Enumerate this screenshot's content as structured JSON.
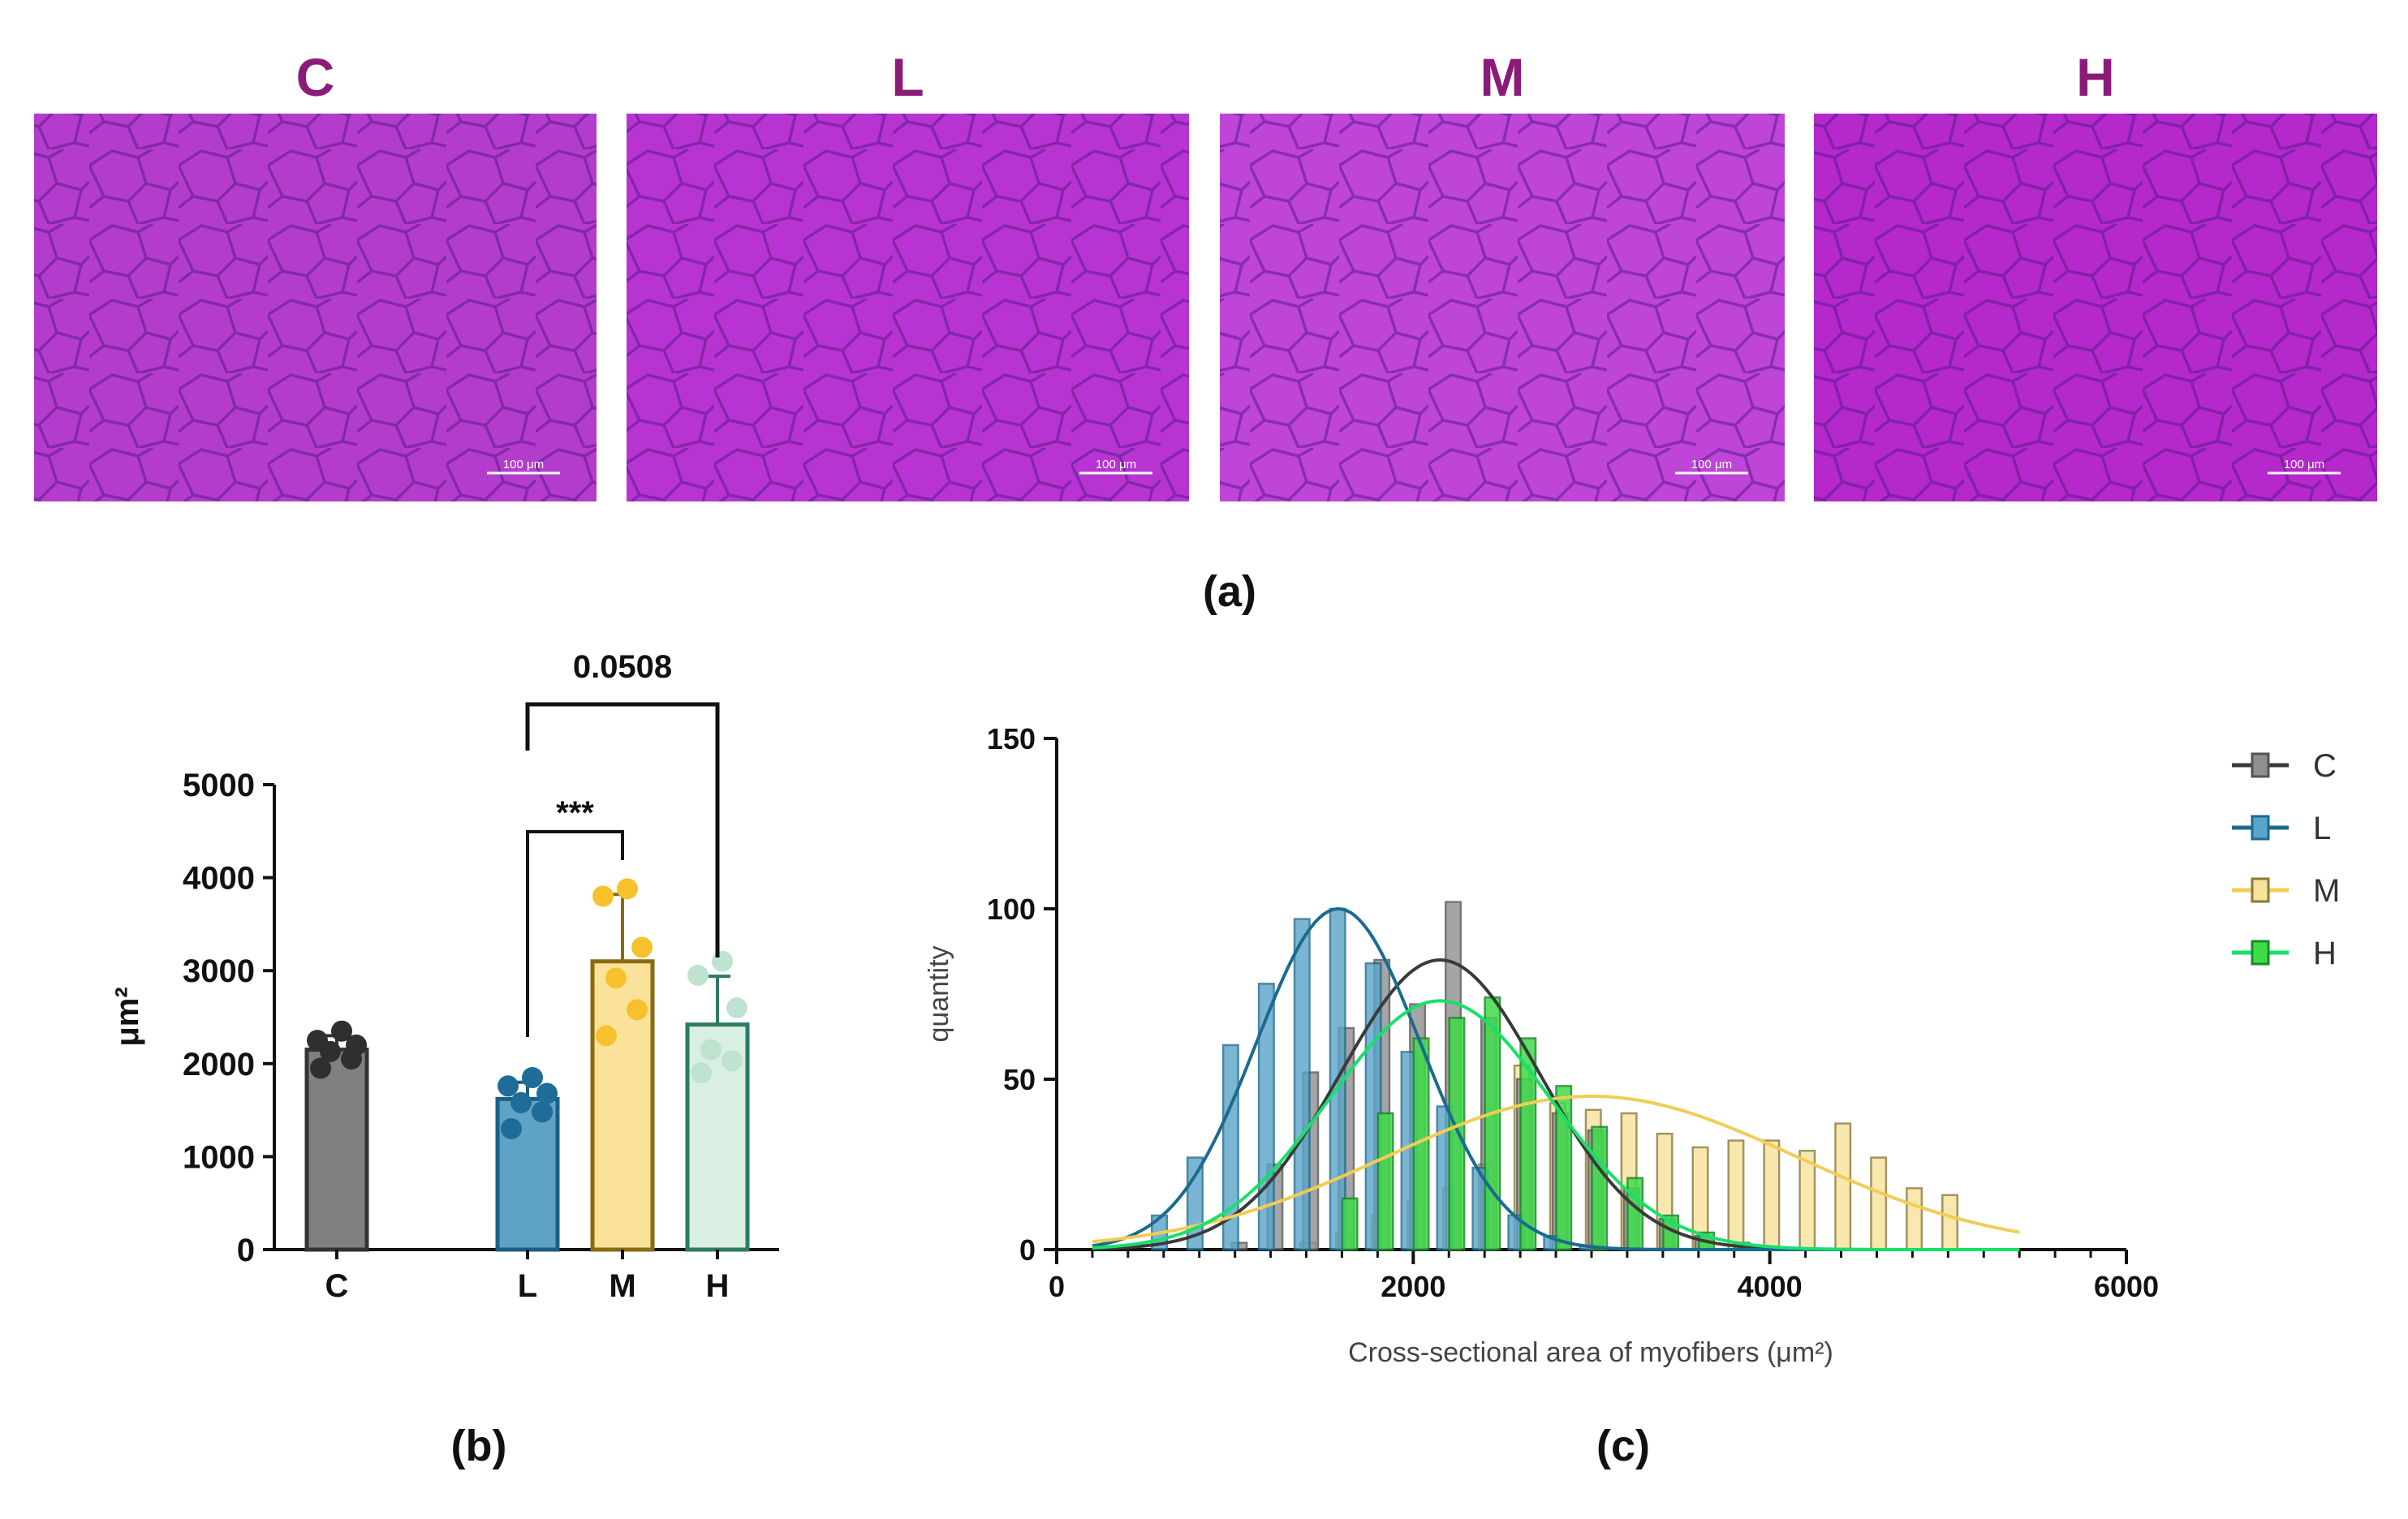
{
  "micrographs": {
    "panel_label": "(a)",
    "title_color": "#8a1c78",
    "scale_label": "100 μm",
    "images": [
      {
        "title": "C",
        "tint": "#b43ccc"
      },
      {
        "title": "L",
        "tint": "#b734d2"
      },
      {
        "title": "M",
        "tint": "#bf44d8"
      },
      {
        "title": "H",
        "tint": "#b428cc"
      }
    ]
  },
  "chart_data": [
    {
      "type": "bar",
      "panel_label": "(b)",
      "ylabel": "μm²",
      "ylim": [
        0,
        5000
      ],
      "yticks": [
        "0",
        "1000",
        "2000",
        "3000",
        "4000",
        "5000"
      ],
      "categories": [
        "C",
        "L",
        "M",
        "H"
      ],
      "values": [
        2150,
        1620,
        3100,
        2420
      ],
      "sd": [
        150,
        180,
        720,
        520
      ],
      "points": [
        [
          1950,
          2050,
          2130,
          2200,
          2250,
          2350
        ],
        [
          1300,
          1480,
          1580,
          1680,
          1760,
          1850
        ],
        [
          2300,
          2580,
          2920,
          3250,
          3800,
          3880
        ],
        [
          1900,
          2030,
          2150,
          2600,
          2950,
          3100
        ]
      ],
      "fill_colors": [
        "#808080",
        "#5ea3c6",
        "#fbe29a",
        "#d9efe1"
      ],
      "edge_colors": [
        "#333333",
        "#1b5f84",
        "#8a6a12",
        "#2e7b63"
      ],
      "point_colors": [
        "#2f2f2f",
        "#1e6c97",
        "#f6c12c",
        "#bfe3cf"
      ],
      "significance": [
        {
          "from": "L",
          "to": "M",
          "label": "***"
        },
        {
          "from": "L",
          "to": "H",
          "label": "0.0508"
        }
      ]
    },
    {
      "type": "bar",
      "panel_label": "(c)",
      "xlabel": "Cross-sectional area of myofibers (μm²)",
      "ylabel": "quantity",
      "xlim": [
        0,
        6000
      ],
      "ylim": [
        0,
        150
      ],
      "xticks": [
        "0",
        "2000",
        "4000",
        "6000"
      ],
      "yticks": [
        "0",
        "50",
        "100",
        "150"
      ],
      "bin_width": 200,
      "bin_centers": [
        400,
        600,
        800,
        1000,
        1200,
        1400,
        1600,
        1800,
        2000,
        2200,
        2400,
        2600,
        2800,
        3000,
        3200,
        3400,
        3600,
        3800,
        4000,
        4200,
        4400,
        4600,
        4800,
        5000
      ],
      "series": [
        {
          "name": "C",
          "color": "#8f8f8f",
          "edge": "#555555",
          "curve_color": "#3a3a3a",
          "values": [
            0,
            0,
            0,
            2,
            25,
            52,
            65,
            85,
            72,
            102,
            68,
            50,
            40,
            35,
            18,
            9,
            4,
            0,
            0,
            0,
            0,
            0,
            0,
            0
          ],
          "fit": {
            "amp": 85,
            "mean": 2150,
            "sd": 560
          }
        },
        {
          "name": "L",
          "color": "#5aa5c9",
          "edge": "#1a6b8f",
          "curve_color": "#1a6b8f",
          "values": [
            0,
            10,
            27,
            60,
            78,
            97,
            100,
            84,
            58,
            42,
            24,
            10,
            4,
            1,
            0,
            0,
            0,
            0,
            0,
            0,
            0,
            0,
            0,
            0
          ],
          "fit": {
            "amp": 100,
            "mean": 1580,
            "sd": 460
          }
        },
        {
          "name": "M",
          "color": "#f7e39a",
          "edge": "#8a7a3a",
          "curve_color": "#f2cc55",
          "values": [
            0,
            0,
            0,
            0,
            0,
            2,
            5,
            10,
            14,
            18,
            25,
            54,
            43,
            41,
            40,
            34,
            30,
            32,
            32,
            29,
            37,
            27,
            18,
            16
          ],
          "fit": {
            "amp": 45,
            "mean": 3000,
            "sd": 1150
          }
        },
        {
          "name": "H",
          "color": "#3fdc4a",
          "edge": "#1c8a28",
          "curve_color": "#18e06a",
          "values": [
            0,
            0,
            0,
            0,
            0,
            0,
            15,
            40,
            62,
            68,
            74,
            62,
            48,
            36,
            21,
            10,
            5,
            2,
            0,
            0,
            0,
            0,
            0,
            0
          ],
          "fit": {
            "amp": 73,
            "mean": 2150,
            "sd": 620
          }
        }
      ],
      "legend_position": "top-right"
    }
  ]
}
